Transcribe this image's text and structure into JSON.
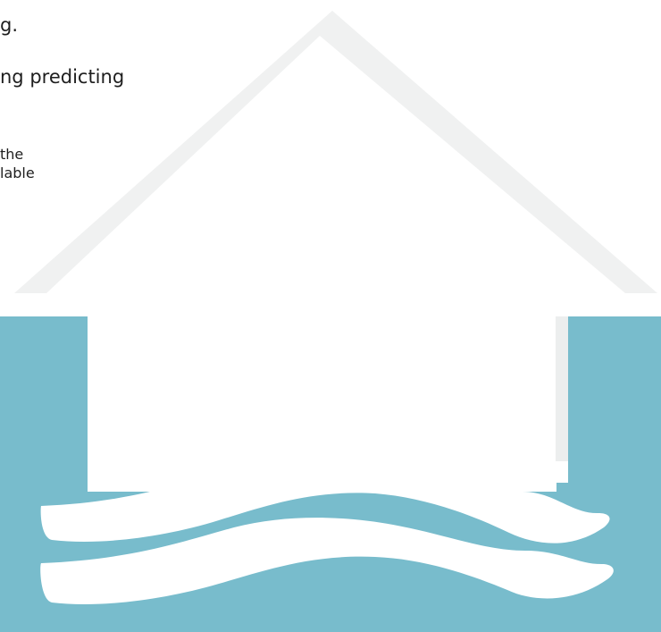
{
  "text_fragments": {
    "line_1": "g.",
    "line_2": "ng predicting",
    "line_3": "the",
    "line_4": "lable"
  },
  "colors": {
    "background": "#ffffff",
    "roof_outline": "#f0f1f1",
    "water": "#78bccc",
    "house_fill": "#ffffff",
    "wave_fill": "#ffffff",
    "text": "#1e1e1e"
  },
  "icon": "flooded-house-icon"
}
